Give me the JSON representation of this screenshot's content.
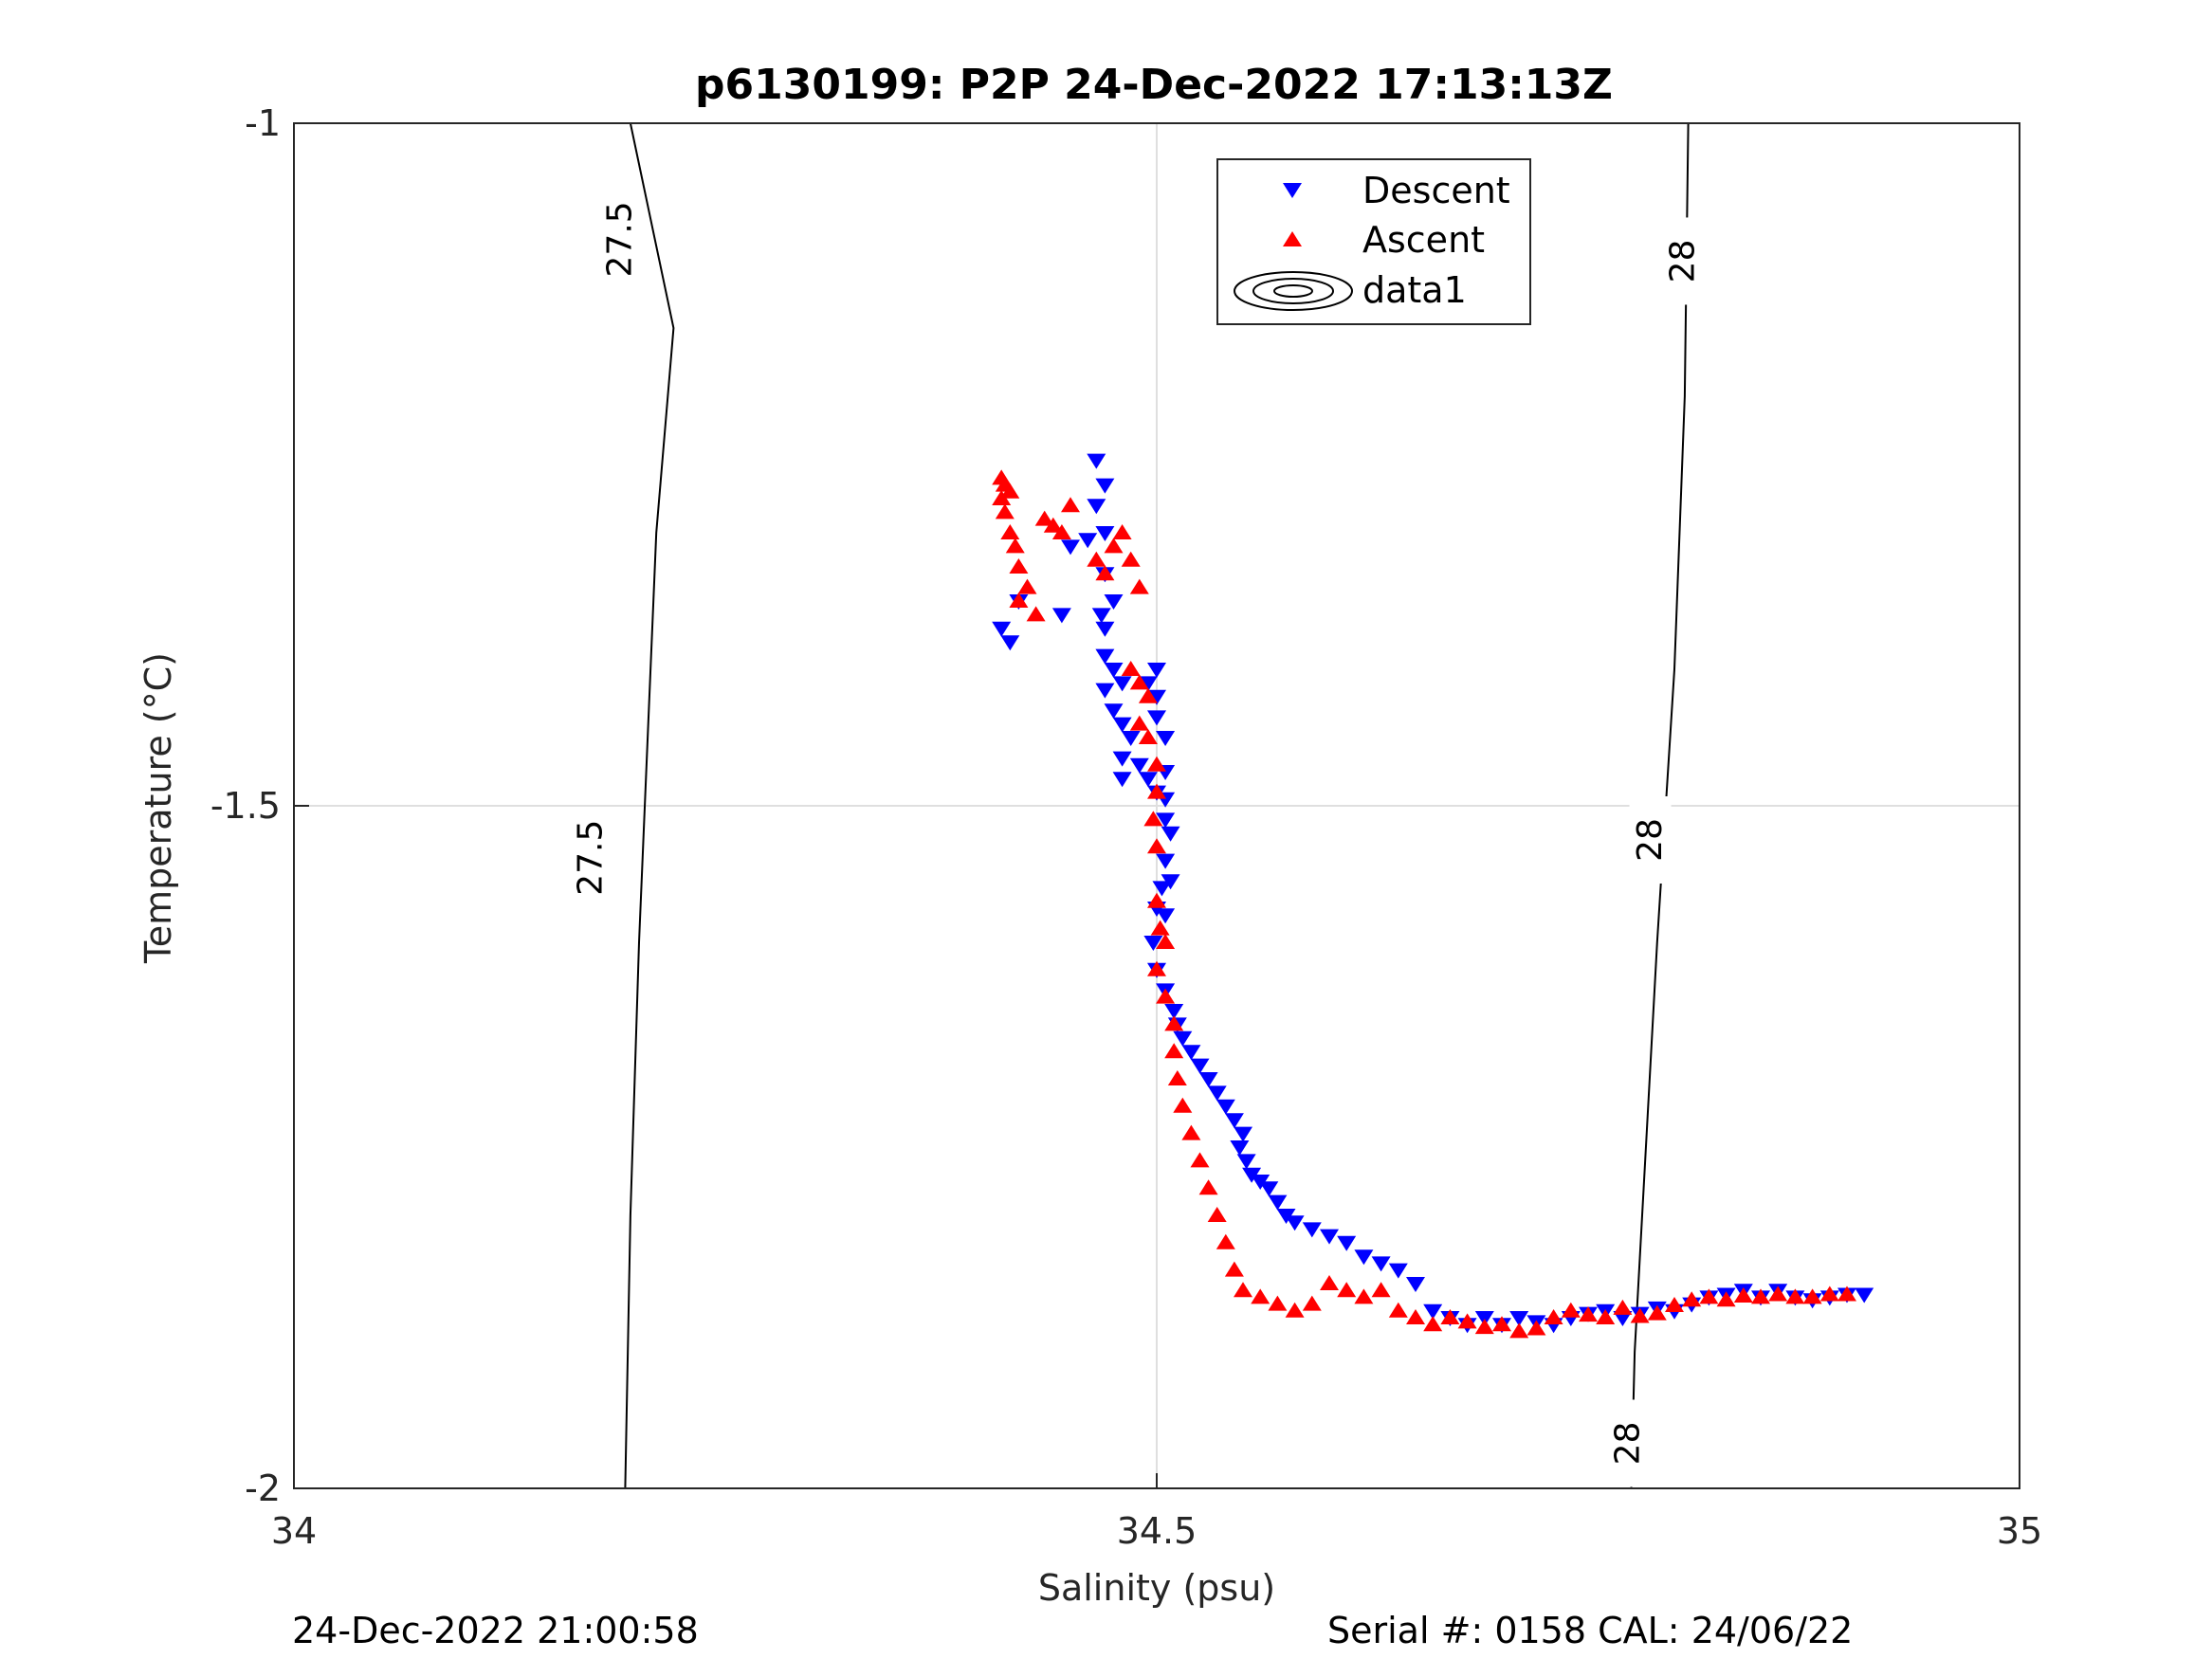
{
  "chart_data": {
    "type": "scatter",
    "title": "p6130199: P2P 24-Dec-2022 17:13:13Z",
    "xlabel": "Salinity (psu)",
    "ylabel": "Temperature (°C)",
    "xlim": [
      34,
      35
    ],
    "ylim": [
      -2,
      -1
    ],
    "xticks": [
      34,
      34.5,
      35
    ],
    "xtick_labels": [
      "34",
      "34.5",
      "35"
    ],
    "yticks": [
      -2,
      -1.5,
      -1
    ],
    "ytick_labels": [
      "-2",
      "-1.5",
      "-1"
    ],
    "grid": true,
    "legend_position": "top-center",
    "series": [
      {
        "name": "Descent",
        "marker": "triangle-down",
        "color": "#0000ff",
        "points": [
          [
            34.465,
            -1.247
          ],
          [
            34.47,
            -1.265
          ],
          [
            34.465,
            -1.28
          ],
          [
            34.47,
            -1.3
          ],
          [
            34.46,
            -1.305
          ],
          [
            34.45,
            -1.31
          ],
          [
            34.47,
            -1.33
          ],
          [
            34.475,
            -1.35
          ],
          [
            34.468,
            -1.36
          ],
          [
            34.47,
            -1.37
          ],
          [
            34.445,
            -1.36
          ],
          [
            34.42,
            -1.35
          ],
          [
            34.41,
            -1.37
          ],
          [
            34.415,
            -1.38
          ],
          [
            34.47,
            -1.39
          ],
          [
            34.475,
            -1.4
          ],
          [
            34.48,
            -1.41
          ],
          [
            34.47,
            -1.415
          ],
          [
            34.475,
            -1.43
          ],
          [
            34.48,
            -1.44
          ],
          [
            34.485,
            -1.45
          ],
          [
            34.48,
            -1.465
          ],
          [
            34.49,
            -1.47
          ],
          [
            34.48,
            -1.48
          ],
          [
            34.5,
            -1.4
          ],
          [
            34.495,
            -1.41
          ],
          [
            34.5,
            -1.42
          ],
          [
            34.5,
            -1.435
          ],
          [
            34.505,
            -1.45
          ],
          [
            34.505,
            -1.475
          ],
          [
            34.495,
            -1.48
          ],
          [
            34.5,
            -1.49
          ],
          [
            34.505,
            -1.495
          ],
          [
            34.505,
            -1.51
          ],
          [
            34.508,
            -1.52
          ],
          [
            34.505,
            -1.54
          ],
          [
            34.508,
            -1.555
          ],
          [
            34.503,
            -1.56
          ],
          [
            34.5,
            -1.575
          ],
          [
            34.505,
            -1.58
          ],
          [
            34.498,
            -1.6
          ],
          [
            34.5,
            -1.62
          ],
          [
            34.505,
            -1.635
          ],
          [
            34.51,
            -1.65
          ],
          [
            34.512,
            -1.66
          ],
          [
            34.515,
            -1.67
          ],
          [
            34.52,
            -1.68
          ],
          [
            34.525,
            -1.69
          ],
          [
            34.53,
            -1.7
          ],
          [
            34.535,
            -1.71
          ],
          [
            34.54,
            -1.72
          ],
          [
            34.545,
            -1.73
          ],
          [
            34.55,
            -1.74
          ],
          [
            34.548,
            -1.75
          ],
          [
            34.552,
            -1.76
          ],
          [
            34.555,
            -1.77
          ],
          [
            34.56,
            -1.775
          ],
          [
            34.565,
            -1.78
          ],
          [
            34.57,
            -1.79
          ],
          [
            34.575,
            -1.8
          ],
          [
            34.58,
            -1.805
          ],
          [
            34.59,
            -1.81
          ],
          [
            34.6,
            -1.815
          ],
          [
            34.61,
            -1.82
          ],
          [
            34.62,
            -1.83
          ],
          [
            34.63,
            -1.835
          ],
          [
            34.64,
            -1.84
          ],
          [
            34.65,
            -1.85
          ],
          [
            34.66,
            -1.87
          ],
          [
            34.67,
            -1.875
          ],
          [
            34.68,
            -1.88
          ],
          [
            34.69,
            -1.875
          ],
          [
            34.7,
            -1.88
          ],
          [
            34.71,
            -1.875
          ],
          [
            34.72,
            -1.878
          ],
          [
            34.73,
            -1.88
          ],
          [
            34.74,
            -1.875
          ],
          [
            34.75,
            -1.872
          ],
          [
            34.76,
            -1.87
          ],
          [
            34.77,
            -1.875
          ],
          [
            34.78,
            -1.872
          ],
          [
            34.79,
            -1.868
          ],
          [
            34.8,
            -1.87
          ],
          [
            34.81,
            -1.865
          ],
          [
            34.82,
            -1.86
          ],
          [
            34.83,
            -1.858
          ],
          [
            34.84,
            -1.855
          ],
          [
            34.85,
            -1.86
          ],
          [
            34.86,
            -1.855
          ],
          [
            34.87,
            -1.86
          ],
          [
            34.88,
            -1.862
          ],
          [
            34.89,
            -1.86
          ],
          [
            34.9,
            -1.858
          ],
          [
            34.91,
            -1.858
          ]
        ]
      },
      {
        "name": "Ascent",
        "marker": "triangle-up",
        "color": "#ff0000",
        "points": [
          [
            34.41,
            -1.26
          ],
          [
            34.412,
            -1.265
          ],
          [
            34.415,
            -1.27
          ],
          [
            34.41,
            -1.275
          ],
          [
            34.412,
            -1.285
          ],
          [
            34.415,
            -1.3
          ],
          [
            34.418,
            -1.31
          ],
          [
            34.42,
            -1.325
          ],
          [
            34.425,
            -1.34
          ],
          [
            34.42,
            -1.35
          ],
          [
            34.43,
            -1.36
          ],
          [
            34.44,
            -1.295
          ],
          [
            34.445,
            -1.3
          ],
          [
            34.435,
            -1.29
          ],
          [
            34.45,
            -1.28
          ],
          [
            34.465,
            -1.32
          ],
          [
            34.47,
            -1.33
          ],
          [
            34.475,
            -1.31
          ],
          [
            34.48,
            -1.3
          ],
          [
            34.485,
            -1.32
          ],
          [
            34.49,
            -1.34
          ],
          [
            34.485,
            -1.4
          ],
          [
            34.49,
            -1.41
          ],
          [
            34.495,
            -1.42
          ],
          [
            34.49,
            -1.44
          ],
          [
            34.495,
            -1.45
          ],
          [
            34.5,
            -1.47
          ],
          [
            34.5,
            -1.49
          ],
          [
            34.498,
            -1.51
          ],
          [
            34.5,
            -1.53
          ],
          [
            34.5,
            -1.57
          ],
          [
            34.502,
            -1.59
          ],
          [
            34.505,
            -1.6
          ],
          [
            34.5,
            -1.62
          ],
          [
            34.505,
            -1.64
          ],
          [
            34.51,
            -1.66
          ],
          [
            34.51,
            -1.68
          ],
          [
            34.512,
            -1.7
          ],
          [
            34.515,
            -1.72
          ],
          [
            34.52,
            -1.74
          ],
          [
            34.525,
            -1.76
          ],
          [
            34.53,
            -1.78
          ],
          [
            34.535,
            -1.8
          ],
          [
            34.54,
            -1.82
          ],
          [
            34.545,
            -1.84
          ],
          [
            34.55,
            -1.855
          ],
          [
            34.56,
            -1.86
          ],
          [
            34.57,
            -1.865
          ],
          [
            34.58,
            -1.87
          ],
          [
            34.59,
            -1.865
          ],
          [
            34.6,
            -1.85
          ],
          [
            34.61,
            -1.855
          ],
          [
            34.62,
            -1.86
          ],
          [
            34.63,
            -1.855
          ],
          [
            34.64,
            -1.87
          ],
          [
            34.65,
            -1.875
          ],
          [
            34.66,
            -1.88
          ],
          [
            34.67,
            -1.875
          ],
          [
            34.68,
            -1.878
          ],
          [
            34.69,
            -1.882
          ],
          [
            34.7,
            -1.88
          ],
          [
            34.71,
            -1.885
          ],
          [
            34.72,
            -1.883
          ],
          [
            34.73,
            -1.875
          ],
          [
            34.74,
            -1.87
          ],
          [
            34.75,
            -1.873
          ],
          [
            34.76,
            -1.875
          ],
          [
            34.77,
            -1.868
          ],
          [
            34.78,
            -1.874
          ],
          [
            34.79,
            -1.872
          ],
          [
            34.8,
            -1.866
          ],
          [
            34.81,
            -1.862
          ],
          [
            34.82,
            -1.86
          ],
          [
            34.83,
            -1.862
          ],
          [
            34.84,
            -1.859
          ],
          [
            34.85,
            -1.86
          ],
          [
            34.86,
            -1.858
          ],
          [
            34.87,
            -1.86
          ],
          [
            34.88,
            -1.86
          ],
          [
            34.89,
            -1.858
          ],
          [
            34.9,
            -1.858
          ]
        ]
      }
    ],
    "contours": {
      "legend_name": "data1",
      "levels": [
        {
          "value": 27.5,
          "label": "27.5",
          "line": [
            [
              34.192,
              -2
            ],
            [
              34.195,
              -1.8
            ],
            [
              34.2,
              -1.6
            ],
            [
              34.21,
              -1.3
            ],
            [
              34.22,
              -1.15
            ],
            [
              34.195,
              -1.0
            ]
          ],
          "labels_at": [
            [
              34.172,
              -1.538
            ],
            [
              34.189,
              -1.085
            ]
          ]
        },
        {
          "value": 28,
          "label": "28",
          "line": [
            [
              34.775,
              -2
            ],
            [
              34.777,
              -1.9
            ],
            [
              34.79,
              -1.6
            ],
            [
              34.8,
              -1.4
            ],
            [
              34.806,
              -1.2
            ],
            [
              34.808,
              -1.0
            ]
          ],
          "labels_at": [
            [
              34.773,
              -1.967
            ],
            [
              34.786,
              -1.525
            ],
            [
              34.805,
              -1.101
            ]
          ]
        }
      ]
    }
  },
  "legend": {
    "entries": [
      {
        "label": "Descent",
        "marker": "triangle-down",
        "color": "#0000ff"
      },
      {
        "label": "Ascent",
        "marker": "triangle-up",
        "color": "#ff0000"
      },
      {
        "label": "data1",
        "marker": "contour",
        "color": "#000000"
      }
    ]
  },
  "footer": {
    "timestamp": "24-Dec-2022 21:00:58",
    "serial_cal": "Serial #: 0158  CAL: 24/06/22"
  }
}
